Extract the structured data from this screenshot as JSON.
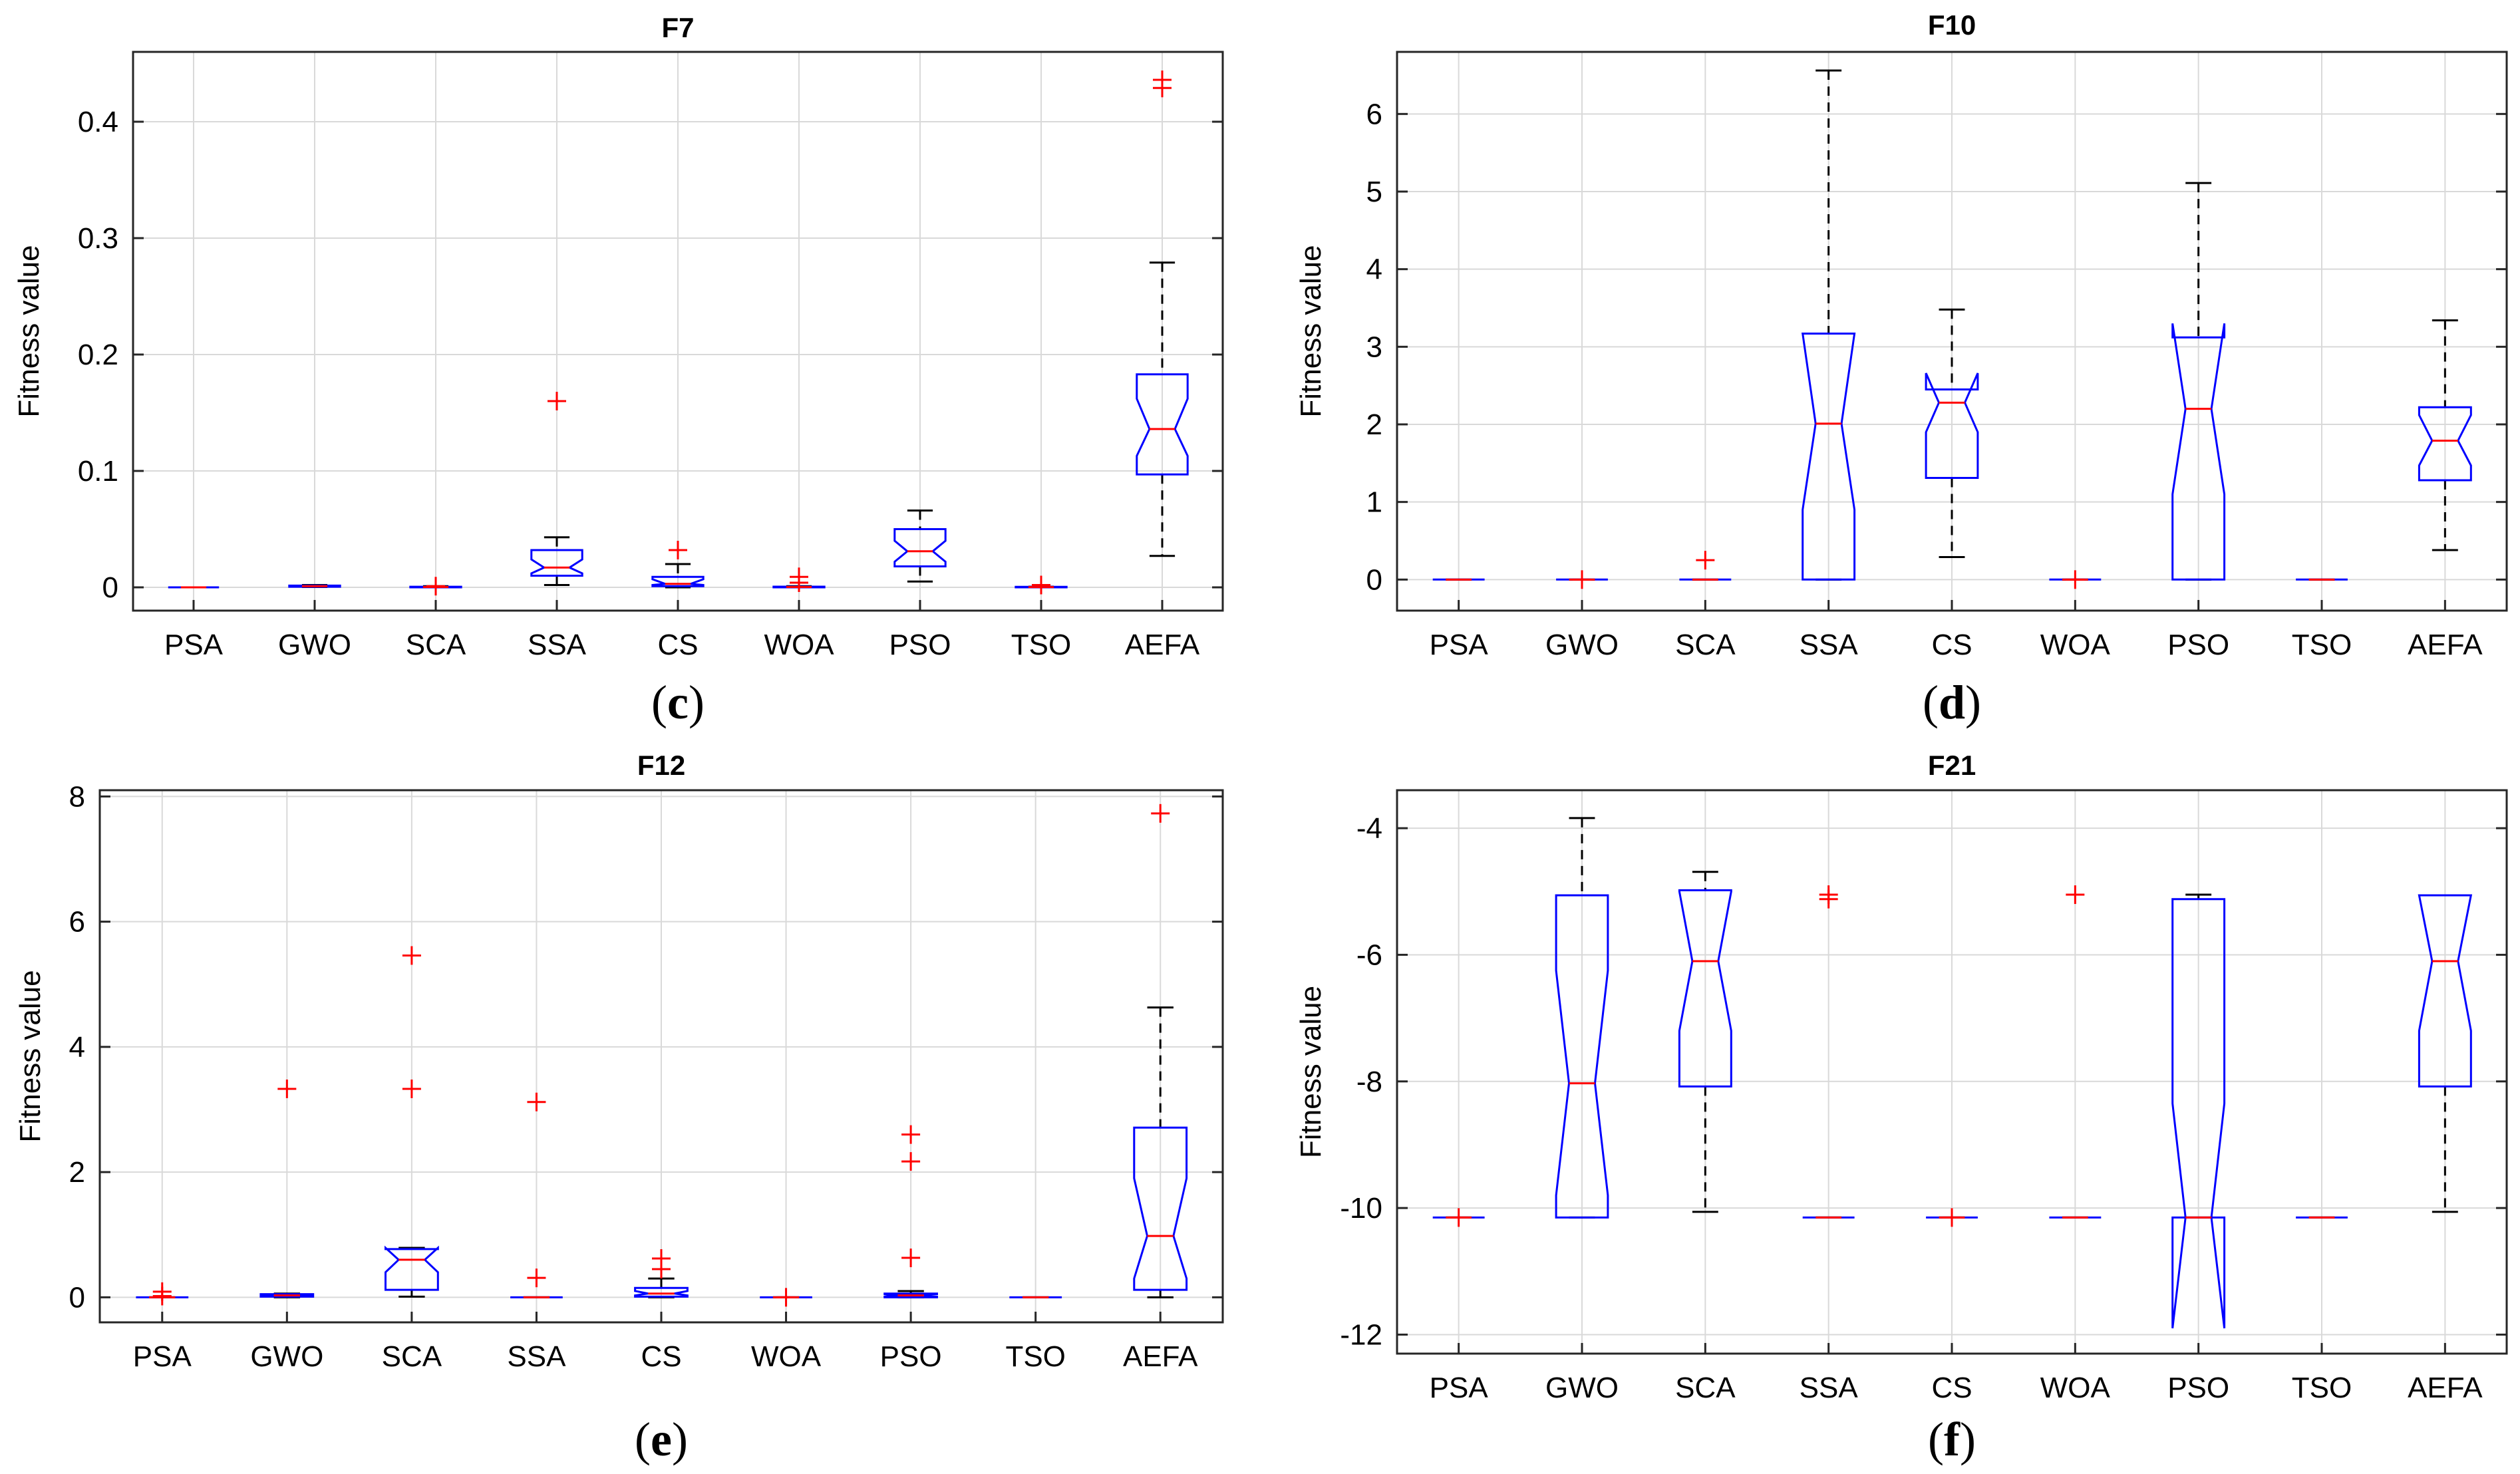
{
  "colors": {
    "box": "#0000ff",
    "median": "#ff0000",
    "outlier": "#ff0000",
    "whisker": "#000000",
    "grid": "#d9d9d9",
    "axis": "#262626"
  },
  "chart_data": [
    {
      "type": "box",
      "title": "F7",
      "caption_letter": "c",
      "ylabel": "Fitness value",
      "categories": [
        "PSA",
        "GWO",
        "SCA",
        "SSA",
        "CS",
        "WOA",
        "PSO",
        "TSO",
        "AEFA"
      ],
      "ylim": [
        -0.02,
        0.46
      ],
      "yticks": [
        0,
        0.1,
        0.2,
        0.3,
        0.4
      ],
      "ytick_labels": [
        "0",
        "0.1",
        "0.2",
        "0.3",
        "0.4"
      ],
      "boxes": [
        {
          "wlo": 0,
          "q1": 0,
          "med": 0,
          "q3": 0,
          "whi": 0,
          "nlo": 0,
          "nhi": 0,
          "outliers": []
        },
        {
          "wlo": 0.0003,
          "q1": 0.0005,
          "med": 0.001,
          "q3": 0.0015,
          "whi": 0.002,
          "nlo": 0.0008,
          "nhi": 0.0012,
          "outliers": []
        },
        {
          "wlo": 0,
          "q1": 0,
          "med": 0.0003,
          "q3": 0.0005,
          "whi": 0.001,
          "nlo": 0.0002,
          "nhi": 0.0004,
          "outliers": [
            0.001
          ]
        },
        {
          "wlo": 0.002,
          "q1": 0.01,
          "med": 0.017,
          "q3": 0.032,
          "whi": 0.043,
          "nlo": 0.012,
          "nhi": 0.024,
          "outliers": [
            0.16
          ]
        },
        {
          "wlo": 0,
          "q1": 0.001,
          "med": 0.003,
          "q3": 0.009,
          "whi": 0.02,
          "nlo": 0.002,
          "nhi": 0.007,
          "outliers": [
            0.032
          ]
        },
        {
          "wlo": 0,
          "q1": 0,
          "med": 0.0003,
          "q3": 0.0006,
          "whi": 0.001,
          "nlo": 0.0002,
          "nhi": 0.0005,
          "outliers": [
            0.004,
            0.009
          ]
        },
        {
          "wlo": 0.005,
          "q1": 0.018,
          "med": 0.031,
          "q3": 0.05,
          "whi": 0.066,
          "nlo": 0.022,
          "nhi": 0.04,
          "outliers": []
        },
        {
          "wlo": 0,
          "q1": 0,
          "med": 0.0002,
          "q3": 0.0004,
          "whi": 0.0006,
          "nlo": 0.0001,
          "nhi": 0.0003,
          "outliers": [
            0.002
          ]
        },
        {
          "wlo": 0.027,
          "q1": 0.097,
          "med": 0.136,
          "q3": 0.183,
          "whi": 0.279,
          "nlo": 0.113,
          "nhi": 0.162,
          "outliers": [
            0.429,
            0.436
          ]
        }
      ]
    },
    {
      "type": "box",
      "title": "F10",
      "caption_letter": "d",
      "ylabel": "Fitness value",
      "categories": [
        "PSA",
        "GWO",
        "SCA",
        "SSA",
        "CS",
        "WOA",
        "PSO",
        "TSO",
        "AEFA"
      ],
      "ylim": [
        -0.4,
        6.8
      ],
      "yticks": [
        0,
        1,
        2,
        3,
        4,
        5,
        6
      ],
      "ytick_labels": [
        "0",
        "1",
        "2",
        "3",
        "4",
        "5",
        "6"
      ],
      "boxes": [
        {
          "wlo": 0,
          "q1": 0,
          "med": 0,
          "q3": 0,
          "whi": 0,
          "nlo": 0,
          "nhi": 0,
          "outliers": []
        },
        {
          "wlo": 0,
          "q1": 0,
          "med": 0,
          "q3": 0,
          "whi": 0,
          "nlo": 0,
          "nhi": 0,
          "outliers": [
            0
          ]
        },
        {
          "wlo": 0,
          "q1": 0,
          "med": 0,
          "q3": 0,
          "whi": 0,
          "nlo": 0,
          "nhi": 0,
          "outliers": [
            0.25
          ]
        },
        {
          "wlo": 0,
          "q1": 0,
          "med": 2.01,
          "q3": 3.17,
          "whi": 6.56,
          "nlo": 0.9,
          "nhi": 3.17,
          "outliers": []
        },
        {
          "wlo": 0.29,
          "q1": 1.31,
          "med": 2.28,
          "q3": 2.45,
          "whi": 3.48,
          "nlo": 1.9,
          "nhi": 2.66,
          "outliers": []
        },
        {
          "wlo": 0,
          "q1": 0,
          "med": 0,
          "q3": 0,
          "whi": 0,
          "nlo": 0,
          "nhi": 0,
          "outliers": [
            0
          ]
        },
        {
          "wlo": 0,
          "q1": 0,
          "med": 2.2,
          "q3": 3.12,
          "whi": 5.11,
          "nlo": 1.1,
          "nhi": 3.3,
          "outliers": []
        },
        {
          "wlo": 0,
          "q1": 0,
          "med": 0,
          "q3": 0,
          "whi": 0,
          "nlo": 0,
          "nhi": 0,
          "outliers": []
        },
        {
          "wlo": 0.38,
          "q1": 1.28,
          "med": 1.79,
          "q3": 2.22,
          "whi": 3.34,
          "nlo": 1.47,
          "nhi": 2.12,
          "outliers": []
        }
      ]
    },
    {
      "type": "box",
      "title": "F12",
      "caption_letter": "e",
      "ylabel": "Fitness value",
      "categories": [
        "PSA",
        "GWO",
        "SCA",
        "SSA",
        "CS",
        "WOA",
        "PSO",
        "TSO",
        "AEFA"
      ],
      "ylim": [
        -0.4,
        8.1
      ],
      "yticks": [
        0,
        2,
        4,
        6,
        8
      ],
      "ytick_labels": [
        "0",
        "2",
        "4",
        "6",
        "8"
      ],
      "boxes": [
        {
          "wlo": 0,
          "q1": 0,
          "med": 0,
          "q3": 0,
          "whi": 0,
          "nlo": 0,
          "nhi": 0,
          "outliers": [
            0.02,
            0.09
          ]
        },
        {
          "wlo": 0,
          "q1": 0.01,
          "med": 0.03,
          "q3": 0.05,
          "whi": 0.06,
          "nlo": 0.02,
          "nhi": 0.04,
          "outliers": [
            3.33
          ]
        },
        {
          "wlo": 0.01,
          "q1": 0.12,
          "med": 0.6,
          "q3": 0.77,
          "whi": 0.79,
          "nlo": 0.4,
          "nhi": 0.79,
          "outliers": [
            3.33,
            5.46
          ]
        },
        {
          "wlo": 0,
          "q1": 0,
          "med": 0,
          "q3": 0,
          "whi": 0,
          "nlo": 0,
          "nhi": 0,
          "outliers": [
            0.31,
            3.12
          ]
        },
        {
          "wlo": 0,
          "q1": 0.01,
          "med": 0.06,
          "q3": 0.15,
          "whi": 0.3,
          "nlo": 0.03,
          "nhi": 0.1,
          "outliers": [
            0.45,
            0.62
          ]
        },
        {
          "wlo": 0,
          "q1": 0,
          "med": 0,
          "q3": 0,
          "whi": 0,
          "nlo": 0,
          "nhi": 0,
          "outliers": [
            0
          ]
        },
        {
          "wlo": 0,
          "q1": 0,
          "med": 0.03,
          "q3": 0.06,
          "whi": 0.1,
          "nlo": 0.01,
          "nhi": 0.05,
          "outliers": [
            0.63,
            2.17,
            2.6
          ]
        },
        {
          "wlo": 0,
          "q1": 0,
          "med": 0,
          "q3": 0,
          "whi": 0,
          "nlo": 0,
          "nhi": 0,
          "outliers": []
        },
        {
          "wlo": 0,
          "q1": 0.12,
          "med": 0.98,
          "q3": 2.71,
          "whi": 4.63,
          "nlo": 0.3,
          "nhi": 1.9,
          "outliers": [
            7.73
          ]
        }
      ]
    },
    {
      "type": "box",
      "title": "F21",
      "caption_letter": "f",
      "ylabel": "Fitness value",
      "categories": [
        "PSA",
        "GWO",
        "SCA",
        "SSA",
        "CS",
        "WOA",
        "PSO",
        "TSO",
        "AEFA"
      ],
      "ylim": [
        -12.3,
        -3.4
      ],
      "yticks": [
        -12,
        -10,
        -8,
        -6,
        -4
      ],
      "ytick_labels": [
        "-12",
        "-10",
        "-8",
        "-6",
        "-4"
      ],
      "boxes": [
        {
          "wlo": -10.15,
          "q1": -10.15,
          "med": -10.15,
          "q3": -10.15,
          "whi": -10.15,
          "nlo": -10.15,
          "nhi": -10.15,
          "outliers": [
            -10.15
          ]
        },
        {
          "wlo": -10.15,
          "q1": -10.15,
          "med": -8.03,
          "q3": -5.06,
          "whi": -3.84,
          "nlo": -9.8,
          "nhi": -6.25,
          "outliers": []
        },
        {
          "wlo": -10.06,
          "q1": -8.08,
          "med": -6.1,
          "q3": -4.98,
          "whi": -4.69,
          "nlo": -7.2,
          "nhi": -5.0,
          "outliers": []
        },
        {
          "wlo": -10.15,
          "q1": -10.15,
          "med": -10.15,
          "q3": -10.15,
          "whi": -10.15,
          "nlo": -10.15,
          "nhi": -10.15,
          "outliers": [
            -5.05,
            -5.12
          ]
        },
        {
          "wlo": -10.15,
          "q1": -10.15,
          "med": -10.15,
          "q3": -10.15,
          "whi": -10.15,
          "nlo": -10.15,
          "nhi": -10.15,
          "outliers": [
            -10.15
          ]
        },
        {
          "wlo": -10.15,
          "q1": -10.15,
          "med": -10.15,
          "q3": -10.15,
          "whi": -10.15,
          "nlo": -10.15,
          "nhi": -10.15,
          "outliers": [
            -5.05
          ]
        },
        {
          "wlo": -10.15,
          "q1": -10.15,
          "med": -10.15,
          "q3": -5.12,
          "whi": -5.05,
          "nlo": -11.9,
          "nhi": -8.35,
          "outliers": []
        },
        {
          "wlo": -10.15,
          "q1": -10.15,
          "med": -10.15,
          "q3": -10.15,
          "whi": -10.15,
          "nlo": -10.15,
          "nhi": -10.15,
          "outliers": []
        },
        {
          "wlo": -10.06,
          "q1": -8.08,
          "med": -6.1,
          "q3": -5.06,
          "whi": -5.06,
          "nlo": -7.2,
          "nhi": -5.06,
          "outliers": []
        }
      ]
    }
  ]
}
